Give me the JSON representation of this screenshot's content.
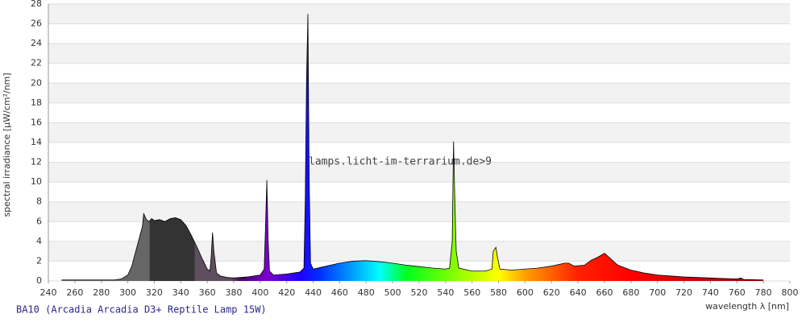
{
  "chart_data": {
    "type": "area",
    "watermark": "lamps.licht-im-terrarium.de>9",
    "caption": "BA10 (Arcadia Arcadia D3+ Reptile Lamp 15W)",
    "x_label": "wavelength λ [nm]",
    "y_label": "spectral irradiance [µW/cm²/nm]",
    "xlim": [
      240,
      800
    ],
    "ylim": [
      0,
      28
    ],
    "xticks": [
      240,
      260,
      280,
      300,
      320,
      340,
      360,
      380,
      400,
      420,
      440,
      460,
      480,
      500,
      520,
      540,
      560,
      580,
      600,
      620,
      640,
      660,
      680,
      700,
      720,
      740,
      760,
      780,
      800
    ],
    "yticks": [
      0,
      2,
      4,
      6,
      8,
      10,
      12,
      14,
      16,
      18,
      20,
      22,
      24,
      26,
      28
    ],
    "grid": true,
    "outline_color": "#000000",
    "color_stops": [
      {
        "x": 250,
        "color": "#666666"
      },
      {
        "x": 316,
        "color": "#666666"
      },
      {
        "x": 317,
        "color": "#333333"
      },
      {
        "x": 350,
        "color": "#333333"
      },
      {
        "x": 351,
        "color": "#5e4e5e"
      },
      {
        "x": 378,
        "color": "#5e4e5e"
      },
      {
        "x": 385,
        "color": "#4b0066"
      },
      {
        "x": 405,
        "color": "#7a00cc"
      },
      {
        "x": 430,
        "color": "#2000ff"
      },
      {
        "x": 445,
        "color": "#0030ff"
      },
      {
        "x": 470,
        "color": "#00a0ff"
      },
      {
        "x": 490,
        "color": "#00ffff"
      },
      {
        "x": 510,
        "color": "#00ff20"
      },
      {
        "x": 545,
        "color": "#80ff00"
      },
      {
        "x": 580,
        "color": "#ffff00"
      },
      {
        "x": 600,
        "color": "#ffa000"
      },
      {
        "x": 640,
        "color": "#ff2000"
      },
      {
        "x": 680,
        "color": "#ff0000"
      },
      {
        "x": 780,
        "color": "#990000"
      }
    ],
    "x": [
      250,
      260,
      270,
      280,
      290,
      295,
      300,
      303,
      306,
      309,
      311,
      312,
      314,
      316,
      318,
      320,
      324,
      328,
      332,
      336,
      340,
      344,
      348,
      352,
      356,
      360,
      362,
      363,
      364,
      365,
      367,
      370,
      375,
      380,
      390,
      400,
      403,
      404,
      405,
      406,
      407,
      410,
      420,
      430,
      433,
      434,
      435,
      436,
      437,
      438,
      440,
      450,
      460,
      470,
      480,
      490,
      500,
      510,
      520,
      530,
      540,
      543,
      545,
      546,
      547,
      548,
      550,
      560,
      570,
      575,
      576,
      577,
      578,
      579,
      581,
      590,
      600,
      610,
      620,
      630,
      633,
      637,
      645,
      650,
      655,
      660,
      665,
      670,
      680,
      690,
      700,
      720,
      740,
      760,
      763,
      765,
      780
    ],
    "values": [
      0.1,
      0.1,
      0.1,
      0.1,
      0.1,
      0.2,
      0.6,
      1.5,
      3,
      4.5,
      5.5,
      6.8,
      6.2,
      6.0,
      6.3,
      6.1,
      6.2,
      6.0,
      6.3,
      6.4,
      6.2,
      5.6,
      4.6,
      3.5,
      2.3,
      1.2,
      1.0,
      2.5,
      4.9,
      3,
      0.8,
      0.5,
      0.35,
      0.3,
      0.4,
      0.6,
      1.2,
      5.5,
      10.2,
      4,
      1.0,
      0.6,
      0.7,
      0.9,
      1.3,
      8,
      20.5,
      27,
      10,
      1.8,
      1.2,
      1.5,
      1.8,
      2.0,
      2.05,
      1.95,
      1.8,
      1.6,
      1.45,
      1.3,
      1.2,
      1.3,
      4,
      14.1,
      8,
      3,
      1.3,
      1.0,
      1.0,
      1.2,
      3.0,
      3.2,
      3.4,
      2.5,
      1.2,
      1.1,
      1.2,
      1.3,
      1.5,
      1.8,
      1.8,
      1.5,
      1.6,
      2.1,
      2.4,
      2.8,
      2.2,
      1.6,
      1.1,
      0.8,
      0.6,
      0.4,
      0.3,
      0.2,
      0.3,
      0.15,
      0.1
    ]
  }
}
